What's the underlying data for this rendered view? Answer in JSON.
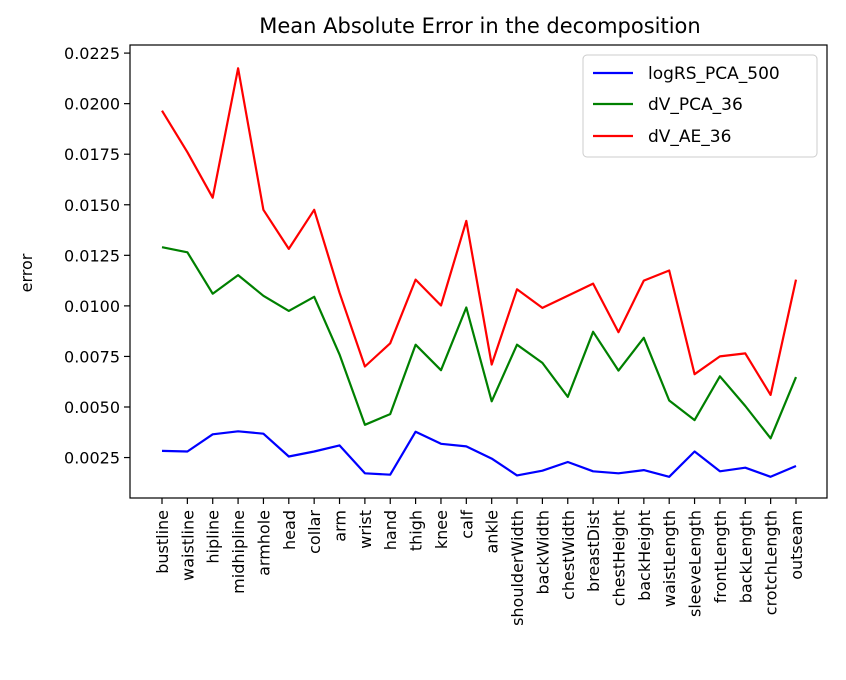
{
  "chart_data": {
    "type": "line",
    "title": "Mean Absolute Error in the decomposition",
    "xlabel": "",
    "ylabel": "error",
    "ylim": [
      0.0005,
      0.0229
    ],
    "yticks": [
      "0.0025",
      "0.0050",
      "0.0075",
      "0.0100",
      "0.0125",
      "0.0150",
      "0.0175",
      "0.0200",
      "0.0225"
    ],
    "legend_position": "top-right",
    "categories": [
      "bustline",
      "waistline",
      "hipline",
      "midhipline",
      "armhole",
      "head",
      "collar",
      "arm",
      "wrist",
      "hand",
      "thigh",
      "knee",
      "calf",
      "ankle",
      "shoulderWidth",
      "backWidth",
      "chestWidth",
      "breastDist",
      "chestHeight",
      "backHeight",
      "waistLength",
      "sleeveLength",
      "frontLength",
      "backLength",
      "crotchLength",
      "outseam"
    ],
    "series": [
      {
        "name": "logRS_PCA_500",
        "color": "#0000ff",
        "values": [
          0.00283,
          0.0028,
          0.00365,
          0.0038,
          0.00368,
          0.00255,
          0.0028,
          0.0031,
          0.00172,
          0.00165,
          0.00378,
          0.00318,
          0.00305,
          0.00245,
          0.00162,
          0.00185,
          0.00228,
          0.00182,
          0.00172,
          0.00188,
          0.00155,
          0.0028,
          0.00182,
          0.002,
          0.00155,
          0.00208
        ]
      },
      {
        "name": "dV_PCA_36",
        "color": "#008000",
        "values": [
          0.0129,
          0.01265,
          0.0106,
          0.01152,
          0.0105,
          0.00975,
          0.01045,
          0.0076,
          0.00412,
          0.00465,
          0.00808,
          0.00682,
          0.00992,
          0.00528,
          0.00808,
          0.00718,
          0.0055,
          0.00872,
          0.0068,
          0.00842,
          0.00532,
          0.00435,
          0.00652,
          0.00505,
          0.00345,
          0.00648
        ]
      },
      {
        "name": "dV_AE_36",
        "color": "#ff0000",
        "values": [
          0.01965,
          0.0176,
          0.01535,
          0.02175,
          0.01475,
          0.01282,
          0.01475,
          0.01065,
          0.007,
          0.00815,
          0.0113,
          0.01002,
          0.0142,
          0.0071,
          0.01082,
          0.0099,
          0.0105,
          0.0111,
          0.0087,
          0.01125,
          0.01175,
          0.00662,
          0.0075,
          0.00765,
          0.0056,
          0.0113
        ]
      }
    ]
  }
}
